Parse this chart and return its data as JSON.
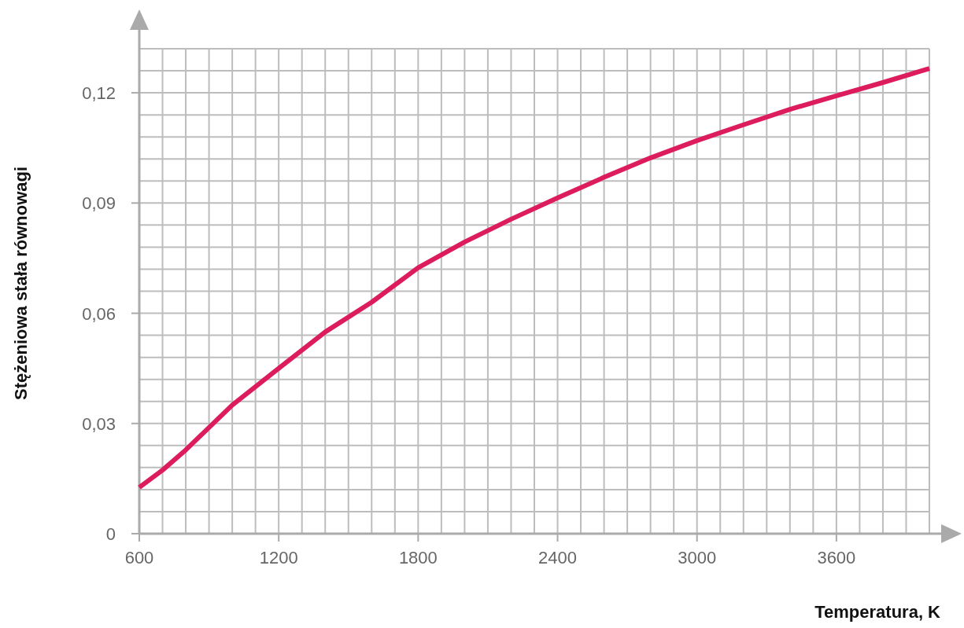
{
  "chart_data": {
    "type": "line",
    "xlabel": "Temperatura, K",
    "ylabel": "Stężeniowa stała równowagi",
    "x": [
      600,
      700,
      800,
      1000,
      1200,
      1400,
      1600,
      1800,
      2000,
      2200,
      2400,
      2600,
      2800,
      3000,
      3200,
      3400,
      3600,
      3800,
      4000
    ],
    "series": [
      {
        "color": "#dc1c5c",
        "values": [
          0.0126,
          0.0173,
          0.0228,
          0.035,
          0.045,
          0.0549,
          0.063,
          0.0724,
          0.0794,
          0.0856,
          0.0914,
          0.097,
          0.1023,
          0.107,
          0.1113,
          0.1155,
          0.1192,
          0.1228,
          0.1266
        ]
      }
    ],
    "xlim": [
      600,
      4000
    ],
    "ylim": [
      0,
      0.132
    ],
    "xticks": [
      600,
      {
        "value": 700,
        "label": null
      },
      {
        "value": 800,
        "label": null
      },
      {
        "value": 900,
        "label": null
      },
      {
        "value": 1000,
        "label": null
      },
      {
        "value": 1100,
        "label": null
      },
      1200,
      {
        "value": 1300,
        "label": null
      },
      {
        "value": 1400,
        "label": null
      },
      {
        "value": 1500,
        "label": null
      },
      {
        "value": 1600,
        "label": null
      },
      {
        "value": 1700,
        "label": null
      },
      1800,
      {
        "value": 1900,
        "label": null
      },
      {
        "value": 2000,
        "label": null
      },
      {
        "value": 2100,
        "label": null
      },
      {
        "value": 2200,
        "label": null
      },
      {
        "value": 2300,
        "label": null
      },
      2400,
      {
        "value": 2500,
        "label": null
      },
      {
        "value": 2600,
        "label": null
      },
      {
        "value": 2700,
        "label": null
      },
      {
        "value": 2800,
        "label": null
      },
      {
        "value": 2900,
        "label": null
      },
      3000,
      {
        "value": 3100,
        "label": null
      },
      {
        "value": 3200,
        "label": null
      },
      {
        "value": 3300,
        "label": null
      },
      {
        "value": 3400,
        "label": null
      },
      {
        "value": 3500,
        "label": null
      },
      3600,
      {
        "value": 3700,
        "label": null
      },
      {
        "value": 3800,
        "label": null
      },
      {
        "value": 3900,
        "label": null
      },
      {
        "value": 4000,
        "label": null
      }
    ],
    "yticks": [
      0,
      {
        "value": 0.006,
        "label": null
      },
      {
        "value": 0.012,
        "label": null
      },
      {
        "value": 0.018,
        "label": null
      },
      {
        "value": 0.024,
        "label": null
      },
      {
        "value": 0.03,
        "label": "0,03"
      },
      {
        "value": 0.036,
        "label": null
      },
      {
        "value": 0.042,
        "label": null
      },
      {
        "value": 0.048,
        "label": null
      },
      {
        "value": 0.054,
        "label": null
      },
      {
        "value": 0.06,
        "label": "0,06"
      },
      {
        "value": 0.066,
        "label": null
      },
      {
        "value": 0.072,
        "label": null
      },
      {
        "value": 0.078,
        "label": null
      },
      {
        "value": 0.084,
        "label": null
      },
      {
        "value": 0.09,
        "label": "0,09"
      },
      {
        "value": 0.096,
        "label": null
      },
      {
        "value": 0.102,
        "label": null
      },
      {
        "value": 0.108,
        "label": null
      },
      {
        "value": 0.114,
        "label": null
      },
      {
        "value": 0.12,
        "label": "0,12"
      },
      {
        "value": 0.126,
        "label": null
      },
      {
        "value": 0.132,
        "label": null
      }
    ],
    "grid": true,
    "marker": "none",
    "line_style": "solid"
  }
}
